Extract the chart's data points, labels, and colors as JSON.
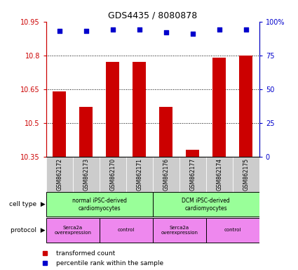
{
  "title": "GDS4435 / 8080878",
  "samples": [
    "GSM862172",
    "GSM862173",
    "GSM862170",
    "GSM862171",
    "GSM862176",
    "GSM862177",
    "GSM862174",
    "GSM862175"
  ],
  "transformed_counts": [
    10.64,
    10.57,
    10.77,
    10.77,
    10.57,
    10.38,
    10.79,
    10.8
  ],
  "percentile_ranks": [
    93,
    93,
    94,
    94,
    92,
    91,
    94,
    94
  ],
  "ylim_left": [
    10.35,
    10.95
  ],
  "ylim_right": [
    0,
    100
  ],
  "yticks_left": [
    10.35,
    10.5,
    10.65,
    10.8,
    10.95
  ],
  "yticks_right": [
    0,
    25,
    50,
    75,
    100
  ],
  "bar_color": "#cc0000",
  "dot_color": "#0000cc",
  "sample_bg_color": "#cccccc",
  "left_axis_color": "#cc0000",
  "right_axis_color": "#0000cc",
  "cell_type_color": "#99ff99",
  "protocol_color": "#ee88ee",
  "cell_type_label": "cell type",
  "protocol_label": "protocol",
  "legend_bar_label": "transformed count",
  "legend_dot_label": "percentile rank within the sample"
}
